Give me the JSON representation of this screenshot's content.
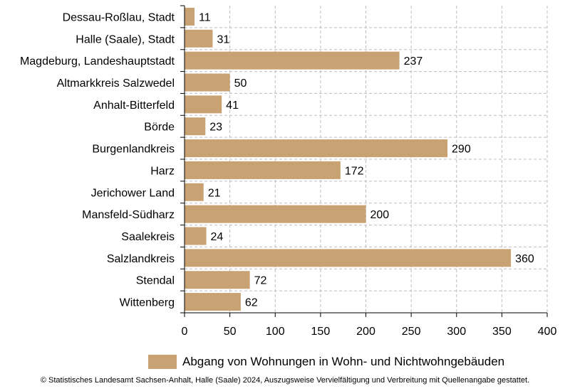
{
  "chart_data": {
    "type": "bar",
    "orientation": "horizontal",
    "categories": [
      "Dessau-Roßlau, Stadt",
      "Halle (Saale), Stadt",
      "Magdeburg, Landeshauptstadt",
      "Altmarkkreis Salzwedel",
      "Anhalt-Bitterfeld",
      "Börde",
      "Burgenlandkreis",
      "Harz",
      "Jerichower Land",
      "Mansfeld-Südharz",
      "Saalekreis",
      "Salzlandkreis",
      "Stendal",
      "Wittenberg"
    ],
    "series": [
      {
        "name": "Abgang von Wohnungen in Wohn- und Nichtwohngebäuden",
        "color": "#c8a272",
        "values": [
          11,
          31,
          237,
          50,
          41,
          23,
          290,
          172,
          21,
          200,
          24,
          360,
          72,
          62
        ]
      }
    ],
    "xlim": [
      0,
      400
    ],
    "xticks": [
      0,
      50,
      100,
      150,
      200,
      250,
      300,
      350,
      400
    ],
    "grid": true,
    "legend_position": "bottom"
  },
  "legend": {
    "label": "Abgang von Wohnungen in Wohn- und Nichtwohngebäuden"
  },
  "footer": {
    "copyright": "© Statistisches Landesamt Sachsen-Anhalt, Halle (Saale) 2024, Auszugsweise Vervielfältigung und Verbreitung mit Quellenangabe gestattet."
  }
}
